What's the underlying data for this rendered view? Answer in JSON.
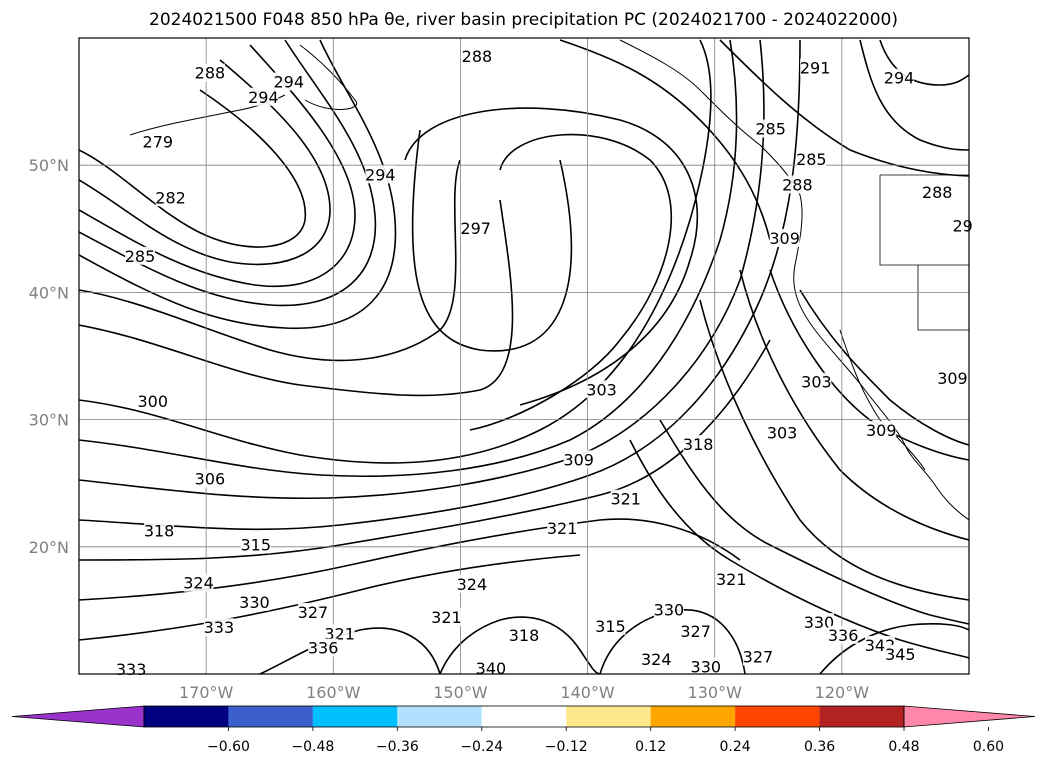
{
  "title": "2024021500 F048 850 hPa θe, river basin precipitation PC (2024021700 - 2024022000)",
  "chart_data": {
    "type": "contour-map",
    "projection": "lat-lon",
    "lon_range": [
      -180,
      -110
    ],
    "lat_range": [
      10,
      60
    ],
    "x_ticks": [
      {
        "lon": -170,
        "label": "170°W"
      },
      {
        "lon": -160,
        "label": "160°W"
      },
      {
        "lon": -150,
        "label": "150°W"
      },
      {
        "lon": -140,
        "label": "140°W"
      },
      {
        "lon": -130,
        "label": "130°W"
      },
      {
        "lon": -120,
        "label": "120°W"
      }
    ],
    "y_ticks": [
      {
        "lat": 20,
        "label": "20°N"
      },
      {
        "lat": 30,
        "label": "30°N"
      },
      {
        "lat": 40,
        "label": "40°N"
      },
      {
        "lat": 50,
        "label": "50°N"
      }
    ],
    "grid": true,
    "colorbar": {
      "colors": [
        "#9933cc",
        "#000080",
        "#3a5fcd",
        "#00bfff",
        "#b0e2ff",
        "#ffffff",
        "#ffe88c",
        "#ffa500",
        "#ff4500",
        "#b22222",
        "#ff88aa"
      ],
      "ticks": [
        "−0.60",
        "−0.48",
        "−0.36",
        "−0.24",
        "−0.12",
        "0.12",
        "0.24",
        "0.36",
        "0.48",
        "0.60"
      ],
      "extend": "both"
    },
    "contour_labels": [
      {
        "text": "288",
        "lon": -169.7,
        "lat": 57.2
      },
      {
        "text": "294",
        "lon": -165.5,
        "lat": 55.3
      },
      {
        "text": "294",
        "lon": -163.5,
        "lat": 56.5
      },
      {
        "text": "288",
        "lon": -148.7,
        "lat": 58.5
      },
      {
        "text": "279",
        "lon": -173.8,
        "lat": 51.8
      },
      {
        "text": "282",
        "lon": -172.8,
        "lat": 47.4
      },
      {
        "text": "285",
        "lon": -175.2,
        "lat": 42.8
      },
      {
        "text": "294",
        "lon": -156.3,
        "lat": 49.2
      },
      {
        "text": "297",
        "lon": -148.8,
        "lat": 45.0
      },
      {
        "text": "300",
        "lon": -174.2,
        "lat": 31.4
      },
      {
        "text": "303",
        "lon": -138.9,
        "lat": 32.3
      },
      {
        "text": "306",
        "lon": -169.7,
        "lat": 25.3
      },
      {
        "text": "309",
        "lon": -140.7,
        "lat": 26.8
      },
      {
        "text": "318",
        "lon": -173.7,
        "lat": 21.2
      },
      {
        "text": "315",
        "lon": -166.1,
        "lat": 20.1
      },
      {
        "text": "324",
        "lon": -170.6,
        "lat": 17.1
      },
      {
        "text": "330",
        "lon": -166.2,
        "lat": 15.6
      },
      {
        "text": "333",
        "lon": -169.0,
        "lat": 13.6
      },
      {
        "text": "327",
        "lon": -161.6,
        "lat": 14.8
      },
      {
        "text": "321",
        "lon": -159.5,
        "lat": 13.1
      },
      {
        "text": "336",
        "lon": -160.8,
        "lat": 12.0
      },
      {
        "text": "333",
        "lon": -175.9,
        "lat": 10.3
      },
      {
        "text": "324",
        "lon": -149.1,
        "lat": 17.0
      },
      {
        "text": "321",
        "lon": -151.1,
        "lat": 14.4
      },
      {
        "text": "318",
        "lon": -145.0,
        "lat": 13.0
      },
      {
        "text": "321",
        "lon": -142.0,
        "lat": 21.4
      },
      {
        "text": "321",
        "lon": -137.0,
        "lat": 23.7
      },
      {
        "text": "318",
        "lon": -131.3,
        "lat": 28.0
      },
      {
        "text": "315",
        "lon": -138.2,
        "lat": 13.7
      },
      {
        "text": "330",
        "lon": -133.6,
        "lat": 15.0
      },
      {
        "text": "327",
        "lon": -131.5,
        "lat": 13.3
      },
      {
        "text": "324",
        "lon": -134.6,
        "lat": 11.1
      },
      {
        "text": "330",
        "lon": -130.7,
        "lat": 10.5
      },
      {
        "text": "327",
        "lon": -126.6,
        "lat": 11.3
      },
      {
        "text": "321",
        "lon": -128.7,
        "lat": 17.4
      },
      {
        "text": "340",
        "lon": -147.6,
        "lat": 10.4
      },
      {
        "text": "330",
        "lon": -121.8,
        "lat": 14.0
      },
      {
        "text": "336",
        "lon": -119.9,
        "lat": 13.0
      },
      {
        "text": "342",
        "lon": -117.0,
        "lat": 12.2
      },
      {
        "text": "345",
        "lon": -115.4,
        "lat": 11.5
      },
      {
        "text": "303",
        "lon": -122.0,
        "lat": 32.9
      },
      {
        "text": "303",
        "lon": -124.7,
        "lat": 28.9
      },
      {
        "text": "309",
        "lon": -116.9,
        "lat": 29.1
      },
      {
        "text": "309",
        "lon": -111.3,
        "lat": 33.2
      },
      {
        "text": "294",
        "lon": -115.5,
        "lat": 56.8
      },
      {
        "text": "291",
        "lon": -122.1,
        "lat": 57.6
      },
      {
        "text": "285",
        "lon": -125.6,
        "lat": 52.8
      },
      {
        "text": "285",
        "lon": -122.4,
        "lat": 50.4
      },
      {
        "text": "288",
        "lon": -123.5,
        "lat": 48.4
      },
      {
        "text": "288",
        "lon": -112.5,
        "lat": 47.8
      },
      {
        "text": "309",
        "lon": -124.5,
        "lat": 44.2
      },
      {
        "text": "29",
        "lon": -110.5,
        "lat": 45.2
      }
    ]
  }
}
